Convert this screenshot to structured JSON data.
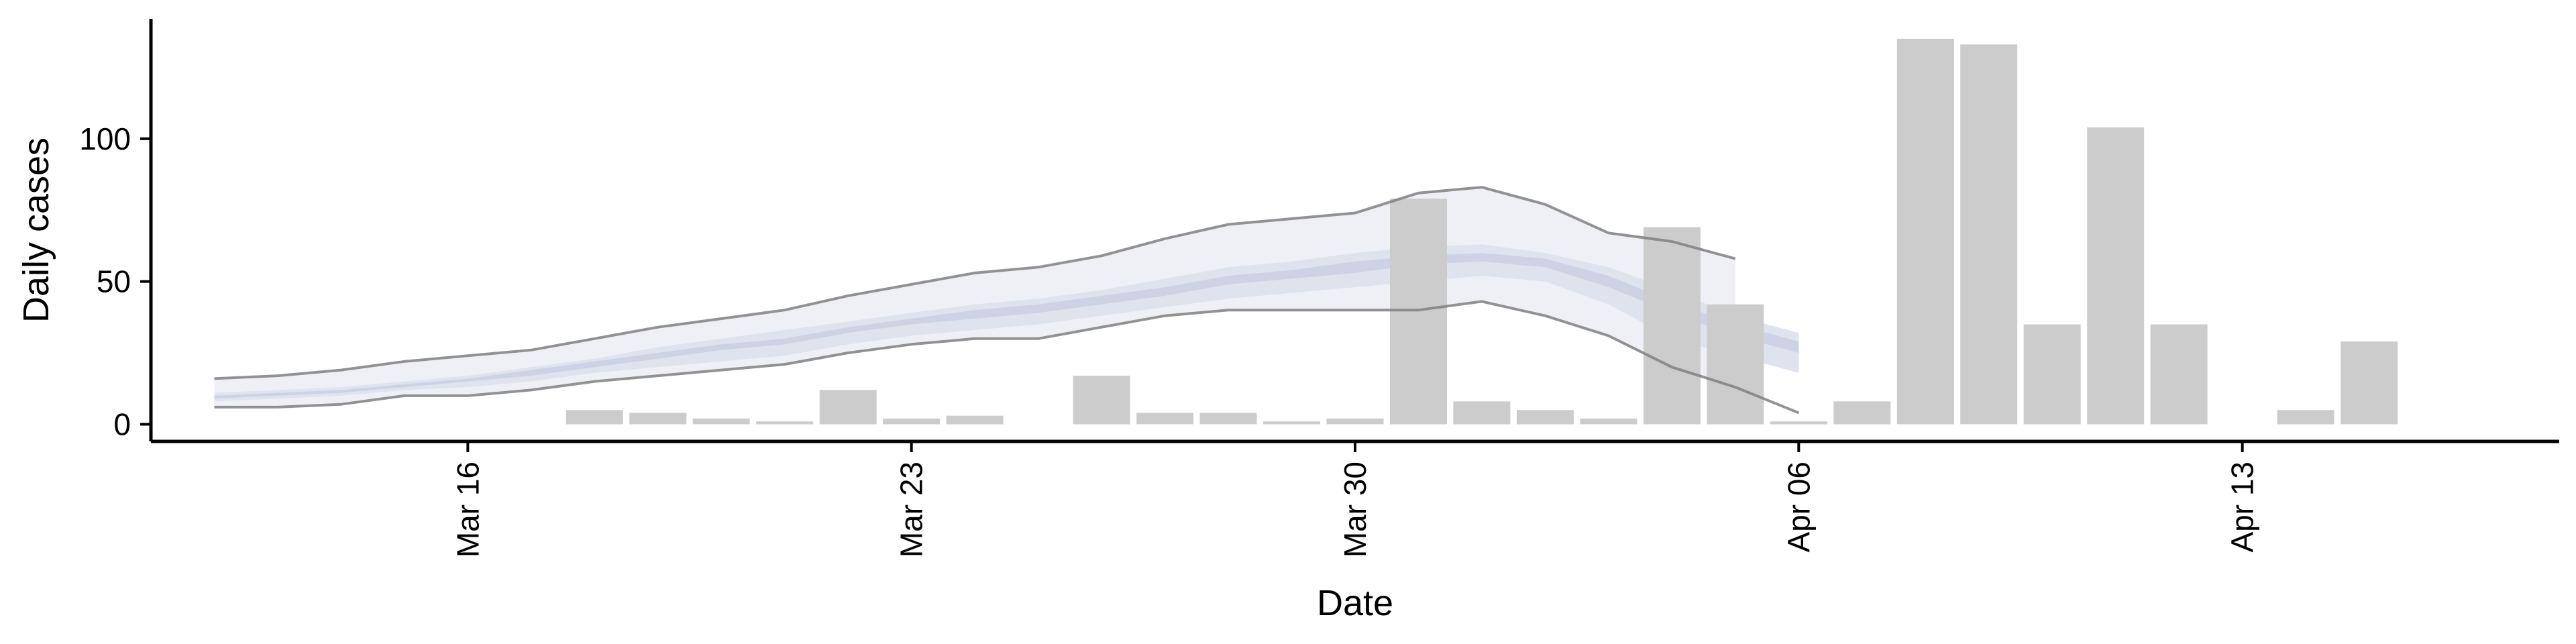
{
  "chart_data": {
    "type": "bar",
    "xlabel": "Date",
    "ylabel": "Daily cases",
    "x_ticks": [
      "Mar 16",
      "Mar 23",
      "Mar 30",
      "Apr 06",
      "Apr 13"
    ],
    "y_ticks": [
      0,
      50,
      100
    ],
    "xlim": [
      "2020-03-11",
      "2020-04-18"
    ],
    "ylim": [
      -6,
      142
    ],
    "grid": false,
    "legend": "none",
    "bars": {
      "name": "",
      "color": "#cccccc",
      "x": [
        "2020-03-18",
        "2020-03-19",
        "2020-03-20",
        "2020-03-21",
        "2020-03-22",
        "2020-03-23",
        "2020-03-24",
        "2020-03-26",
        "2020-03-27",
        "2020-03-28",
        "2020-03-29",
        "2020-03-30",
        "2020-03-31",
        "2020-04-01",
        "2020-04-02",
        "2020-04-03",
        "2020-04-04",
        "2020-04-05",
        "2020-04-06",
        "2020-04-07",
        "2020-04-08",
        "2020-04-09",
        "2020-04-10",
        "2020-04-11",
        "2020-04-12",
        "2020-04-14",
        "2020-04-15"
      ],
      "values": [
        5,
        4,
        2,
        1,
        12,
        2,
        3,
        17,
        4,
        4,
        1,
        2,
        79,
        8,
        5,
        2,
        69,
        42,
        1,
        8,
        135,
        133,
        35,
        104,
        35,
        5,
        29
      ]
    },
    "forecast": {
      "x": [
        "2020-03-12",
        "2020-03-13",
        "2020-03-14",
        "2020-03-15",
        "2020-03-16",
        "2020-03-17",
        "2020-03-18",
        "2020-03-19",
        "2020-03-20",
        "2020-03-21",
        "2020-03-22",
        "2020-03-23",
        "2020-03-24",
        "2020-03-25",
        "2020-03-26",
        "2020-03-27",
        "2020-03-28",
        "2020-03-29",
        "2020-03-30",
        "2020-03-31",
        "2020-04-01",
        "2020-04-02",
        "2020-04-03",
        "2020-04-04",
        "2020-04-05",
        "2020-04-06"
      ],
      "outer_lower": [
        6,
        6,
        7,
        10,
        10,
        12,
        15,
        17,
        19,
        21,
        25,
        28,
        30,
        30,
        34,
        38,
        40,
        40,
        40,
        40,
        43,
        38,
        31,
        20,
        13,
        4
      ],
      "outer_upper": [
        16,
        17,
        19,
        22,
        24,
        26,
        30,
        34,
        37,
        40,
        45,
        49,
        53,
        55,
        59,
        65,
        70,
        72,
        74,
        81,
        83,
        77,
        67,
        64,
        58,
        null
      ],
      "inner_lower": [
        8,
        9,
        10,
        12,
        13,
        15,
        18,
        20,
        22,
        24,
        28,
        31,
        33,
        35,
        38,
        41,
        44,
        46,
        48,
        50,
        52,
        50,
        42,
        30,
        24,
        18
      ],
      "inner_upper": [
        11,
        12,
        13,
        15,
        17,
        20,
        23,
        27,
        30,
        33,
        36,
        39,
        42,
        44,
        47,
        51,
        55,
        57,
        60,
        62,
        63,
        60,
        55,
        47,
        38,
        32
      ],
      "mid_lower": [
        9,
        10,
        11,
        13,
        15,
        17,
        20,
        23,
        26,
        28,
        32,
        35,
        37,
        39,
        42,
        45,
        49,
        51,
        53,
        56,
        57,
        55,
        48,
        39,
        31,
        25
      ],
      "mid_upper": [
        10,
        11,
        12,
        14,
        16,
        19,
        22,
        25,
        28,
        30,
        34,
        37,
        40,
        42,
        45,
        48,
        52,
        54,
        57,
        59,
        60,
        58,
        52,
        43,
        35,
        29
      ],
      "outer_color": "#eef0f6",
      "inner_color": "#dfe3ee",
      "mid_color": "#cdd3e4",
      "outline_color": "#808080"
    }
  }
}
